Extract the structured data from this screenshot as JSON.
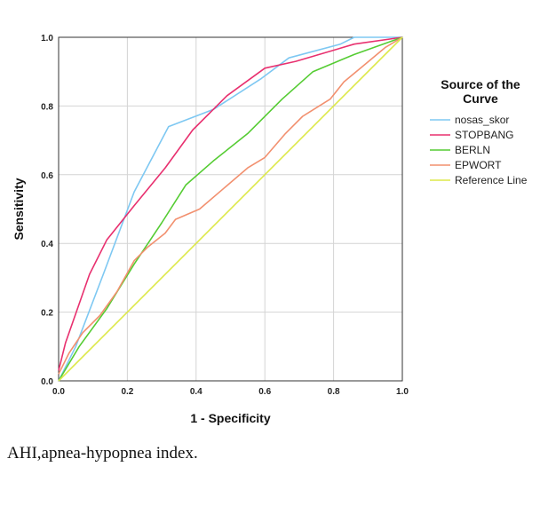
{
  "caption": "AHI,apnea-hypopnea index.",
  "chart_data": {
    "type": "line",
    "title": "",
    "xlabel": "1 - Specificity",
    "ylabel": "Sensitivity",
    "xlim": [
      0,
      1
    ],
    "ylim": [
      0,
      1
    ],
    "x_ticks": [
      "0.0",
      "0.2",
      "0.4",
      "0.6",
      "0.8",
      "1.0"
    ],
    "y_ticks": [
      "0.0",
      "0.2",
      "0.4",
      "0.6",
      "0.8",
      "1.0"
    ],
    "grid": true,
    "legend": {
      "title": "Source of the Curve",
      "title_lines": [
        "Source of the",
        "Curve"
      ],
      "placement": "right"
    },
    "series": [
      {
        "name": "nosas_skor",
        "color": "#7ec8f2",
        "points": [
          [
            0,
            0
          ],
          [
            0.05,
            0.1
          ],
          [
            0.13,
            0.31
          ],
          [
            0.22,
            0.55
          ],
          [
            0.32,
            0.74
          ],
          [
            0.45,
            0.79
          ],
          [
            0.59,
            0.88
          ],
          [
            0.67,
            0.94
          ],
          [
            0.82,
            0.98
          ],
          [
            0.86,
            1.0
          ],
          [
            1.0,
            1.0
          ]
        ]
      },
      {
        "name": "STOPBANG",
        "color": "#e8306f",
        "points": [
          [
            0,
            0.03
          ],
          [
            0.02,
            0.11
          ],
          [
            0.09,
            0.31
          ],
          [
            0.14,
            0.41
          ],
          [
            0.22,
            0.51
          ],
          [
            0.31,
            0.62
          ],
          [
            0.39,
            0.73
          ],
          [
            0.49,
            0.83
          ],
          [
            0.6,
            0.91
          ],
          [
            0.69,
            0.93
          ],
          [
            0.86,
            0.98
          ],
          [
            1.0,
            1.0
          ]
        ]
      },
      {
        "name": "BERLN",
        "color": "#55cc33",
        "points": [
          [
            0,
            0
          ],
          [
            0.06,
            0.1
          ],
          [
            0.14,
            0.21
          ],
          [
            0.22,
            0.34
          ],
          [
            0.3,
            0.46
          ],
          [
            0.37,
            0.57
          ],
          [
            0.45,
            0.64
          ],
          [
            0.55,
            0.72
          ],
          [
            0.65,
            0.82
          ],
          [
            0.74,
            0.9
          ],
          [
            0.86,
            0.95
          ],
          [
            1.0,
            1.0
          ]
        ]
      },
      {
        "name": "EPWORT",
        "color": "#f2906f",
        "points": [
          [
            0,
            0.02
          ],
          [
            0.03,
            0.08
          ],
          [
            0.07,
            0.14
          ],
          [
            0.12,
            0.19
          ],
          [
            0.17,
            0.26
          ],
          [
            0.22,
            0.35
          ],
          [
            0.26,
            0.39
          ],
          [
            0.31,
            0.43
          ],
          [
            0.34,
            0.47
          ],
          [
            0.41,
            0.5
          ],
          [
            0.48,
            0.56
          ],
          [
            0.55,
            0.62
          ],
          [
            0.6,
            0.65
          ],
          [
            0.66,
            0.72
          ],
          [
            0.71,
            0.77
          ],
          [
            0.79,
            0.82
          ],
          [
            0.83,
            0.87
          ],
          [
            0.89,
            0.92
          ],
          [
            0.95,
            0.97
          ],
          [
            1.0,
            1.0
          ]
        ]
      },
      {
        "name": "Reference Line",
        "color": "#dde84a",
        "points": [
          [
            0,
            0
          ],
          [
            1,
            1
          ]
        ]
      }
    ]
  }
}
